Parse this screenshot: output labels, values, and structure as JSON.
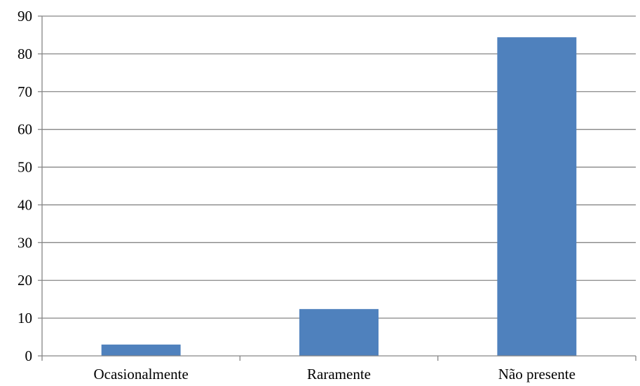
{
  "chart_data": {
    "type": "bar",
    "title": "",
    "xlabel": "",
    "ylabel": "",
    "categories": [
      "Ocasionalmente",
      "Raramente",
      "Não presente"
    ],
    "values": [
      3.0,
      12.4,
      84.4
    ],
    "ylim": [
      0,
      90
    ],
    "yticks": [
      "0",
      "10",
      "20",
      "30",
      "40",
      "50",
      "60",
      "70",
      "80",
      "90"
    ],
    "grid": true,
    "legend": "none",
    "bar_color": "#4f81bd",
    "grid_color": "#868686",
    "axis_color": "#868686"
  }
}
